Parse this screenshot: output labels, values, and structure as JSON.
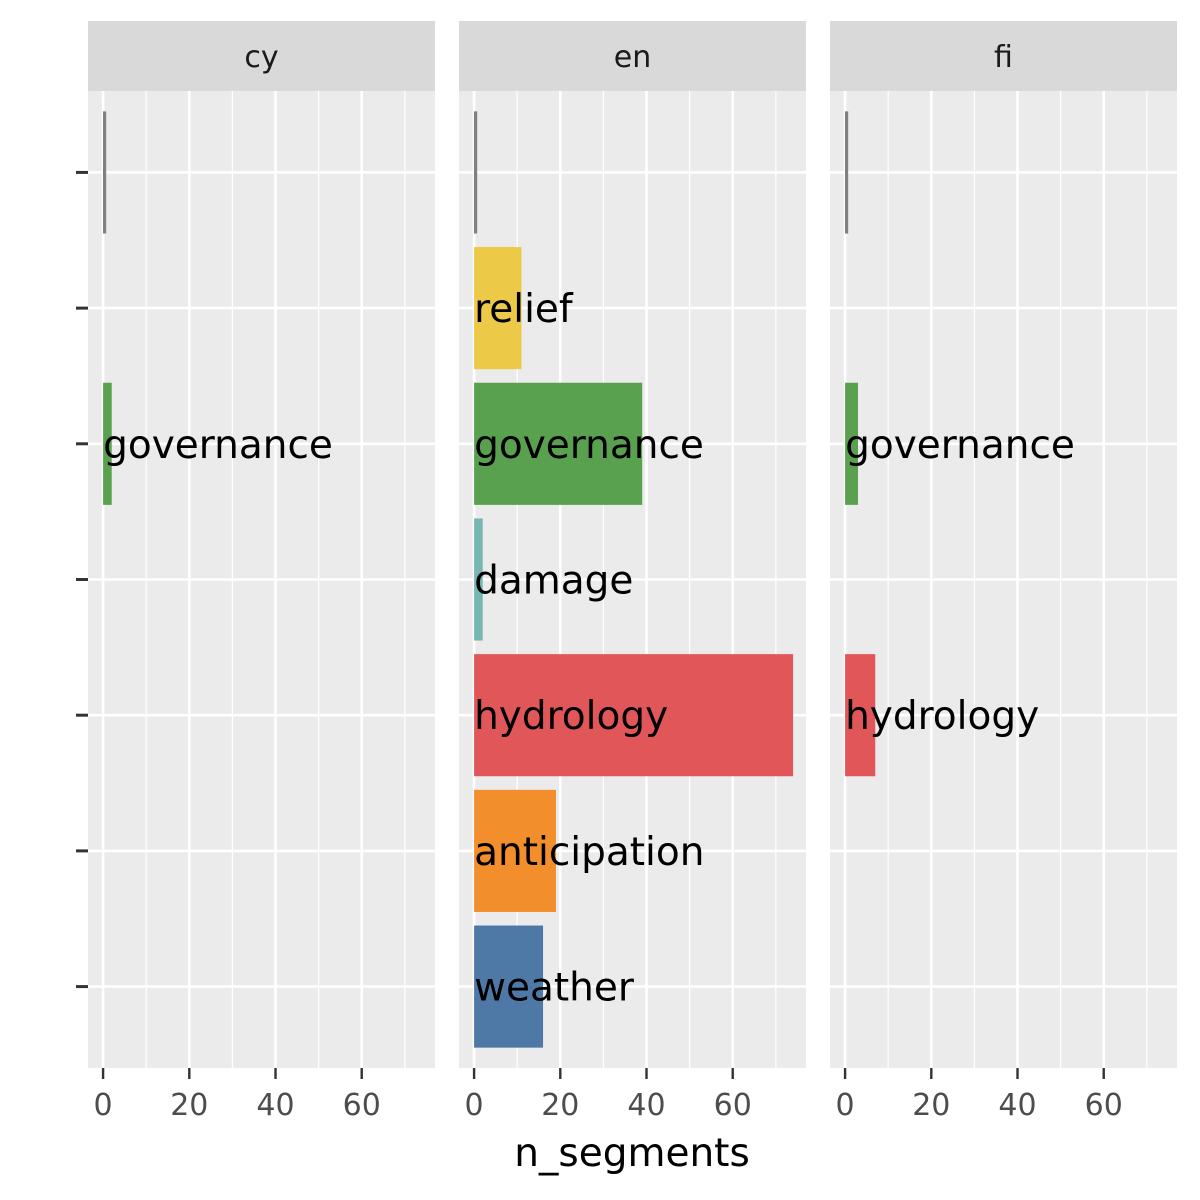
{
  "chart_data": {
    "type": "bar",
    "orientation": "horizontal",
    "facet_by": "language",
    "xlabel": "n_segments",
    "ylabel": "",
    "xlim": [
      -3.5,
      77
    ],
    "x_ticks": [
      0,
      20,
      40,
      60
    ],
    "categories": [
      "",
      "relief",
      "governance",
      "damage",
      "hydrology",
      "anticipation",
      "weather"
    ],
    "colors": {
      "": "#808080",
      "relief": "#EDC948",
      "governance": "#59A14F",
      "damage": "#76B7B2",
      "hydrology": "#E15759",
      "anticipation": "#F28E2B",
      "weather": "#4E79A7"
    },
    "panels": [
      {
        "facet": "cy",
        "bars": [
          {
            "category": "",
            "value": 1
          },
          {
            "category": "governance",
            "value": 2
          }
        ]
      },
      {
        "facet": "en",
        "bars": [
          {
            "category": "",
            "value": 1
          },
          {
            "category": "relief",
            "value": 11
          },
          {
            "category": "governance",
            "value": 39
          },
          {
            "category": "damage",
            "value": 2
          },
          {
            "category": "hydrology",
            "value": 74
          },
          {
            "category": "anticipation",
            "value": 19
          },
          {
            "category": "weather",
            "value": 16
          }
        ]
      },
      {
        "facet": "fi",
        "bars": [
          {
            "category": "",
            "value": 1
          },
          {
            "category": "governance",
            "value": 3
          },
          {
            "category": "hydrology",
            "value": 7
          }
        ]
      }
    ],
    "grid": true,
    "legend": "none"
  }
}
